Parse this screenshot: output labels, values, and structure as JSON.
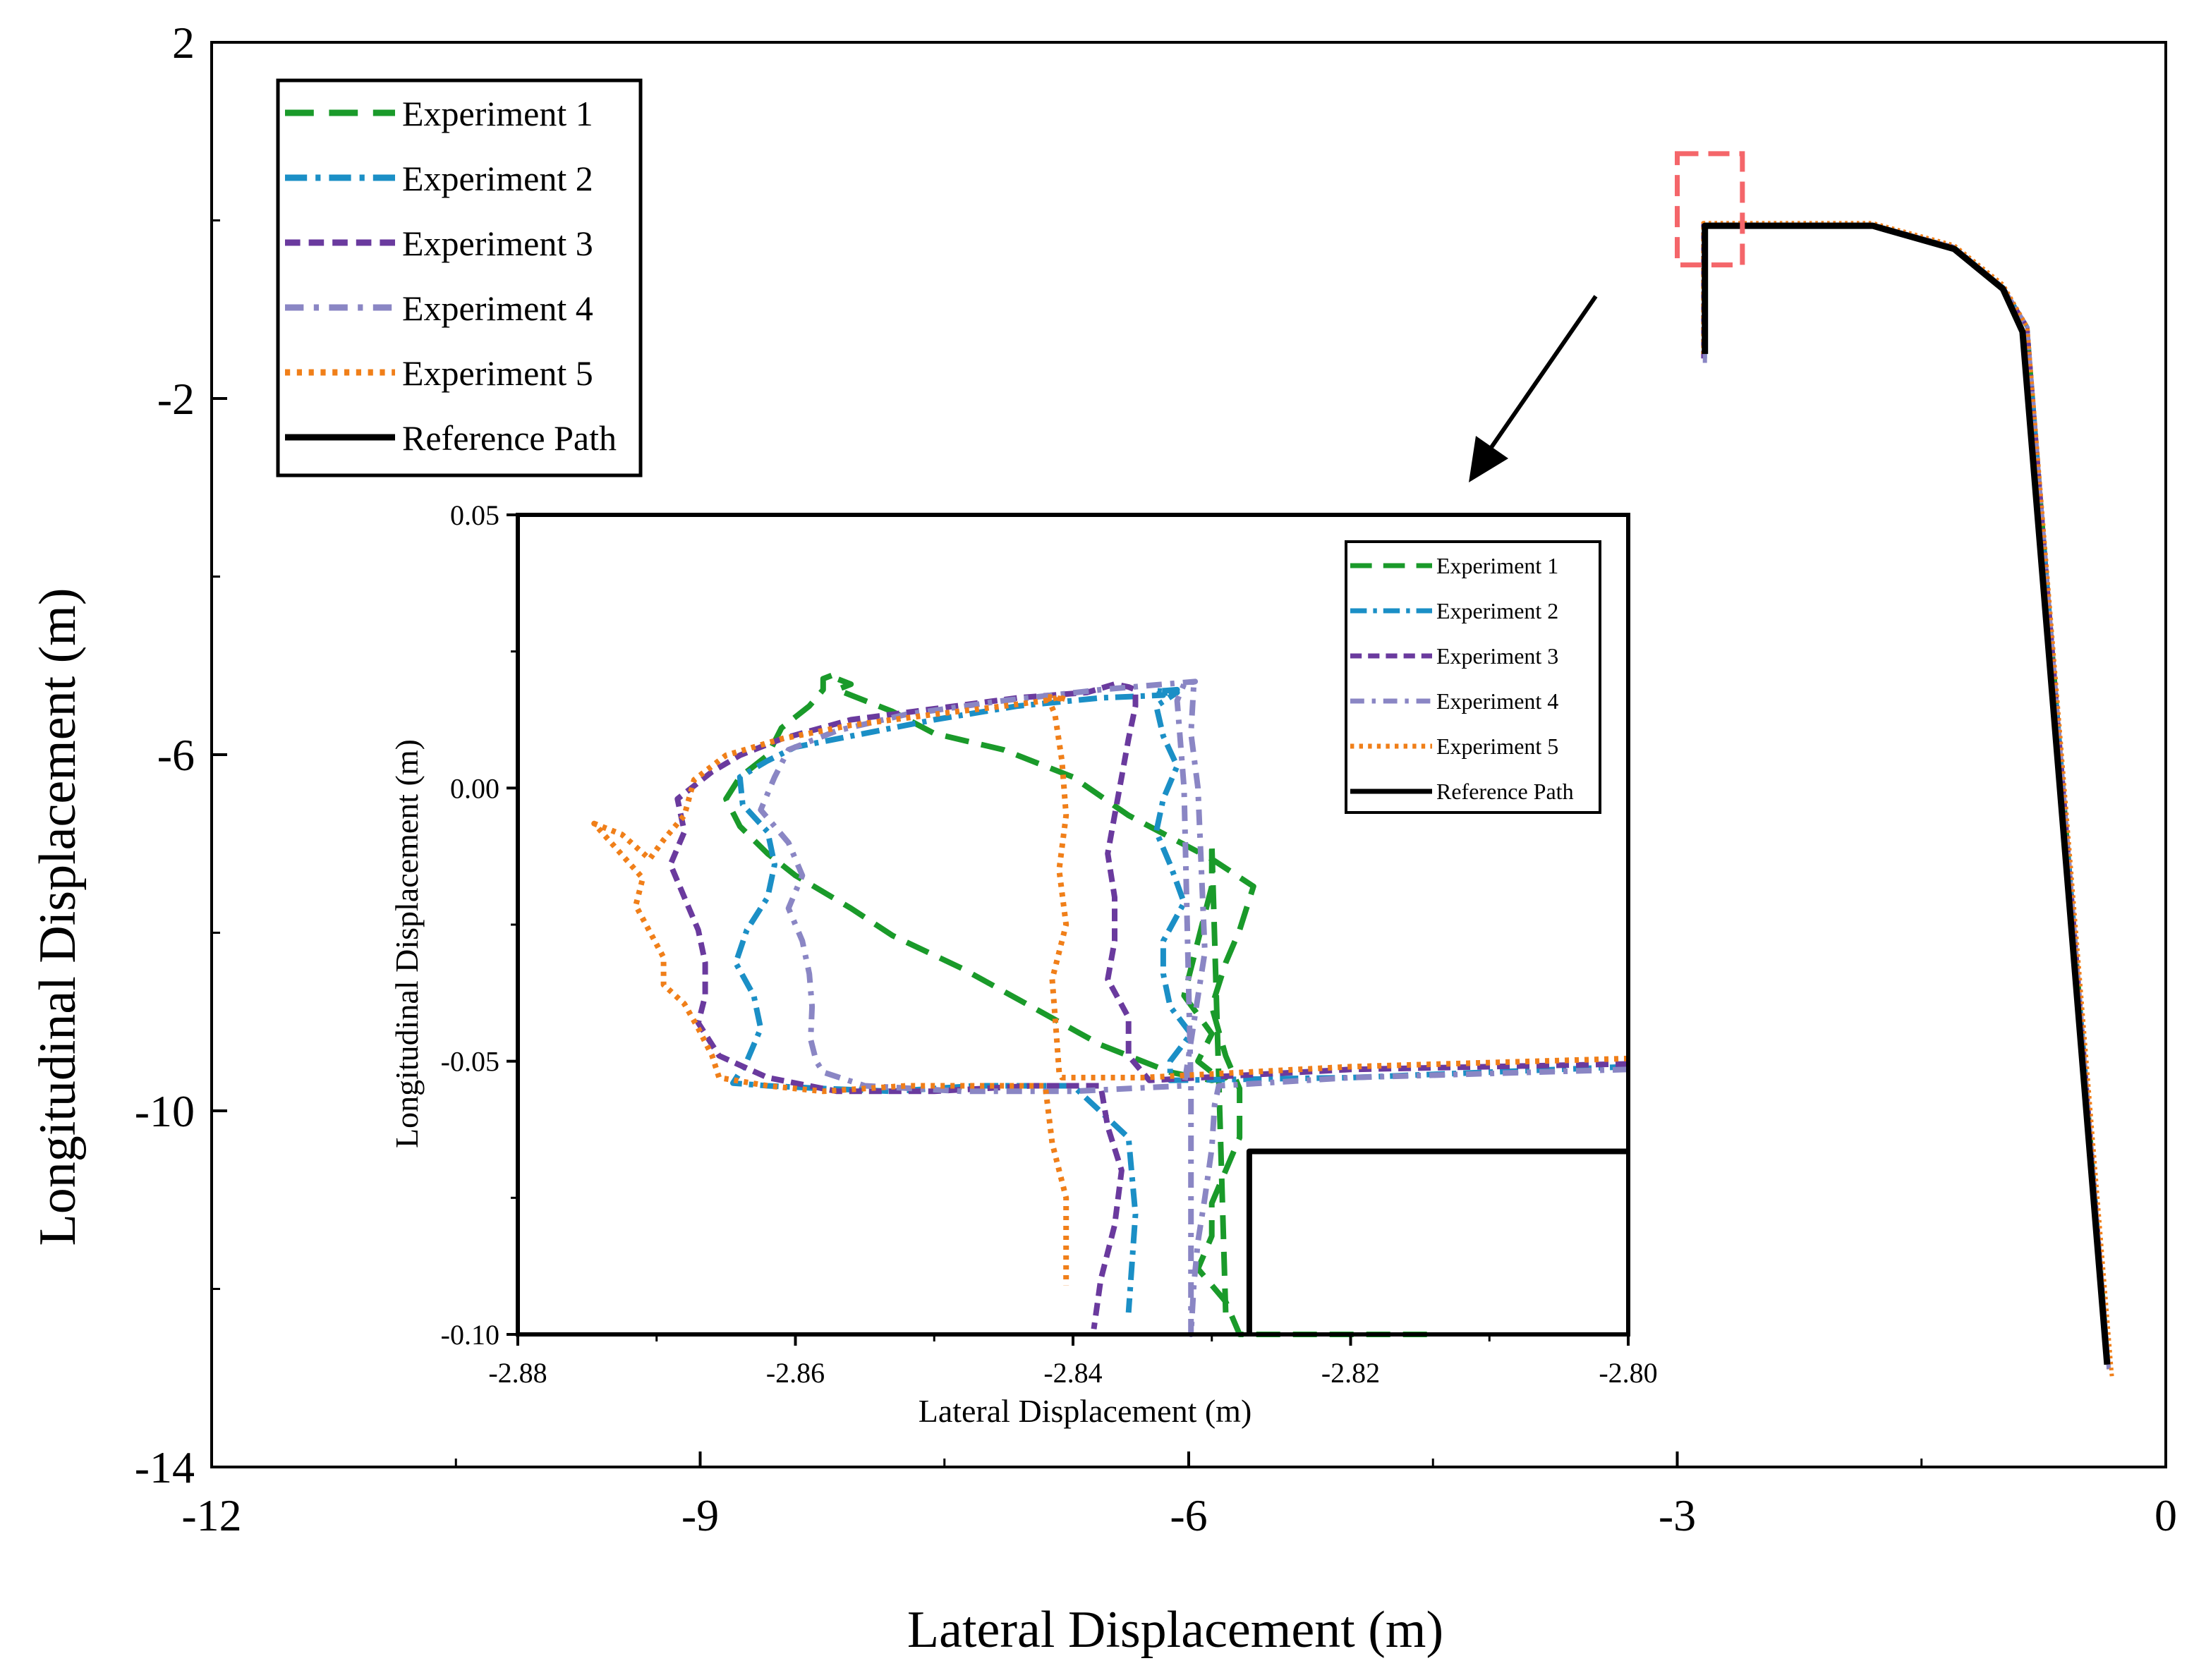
{
  "chart_data": [
    {
      "type": "line",
      "role": "main",
      "xlabel": "Lateral Displacement (m)",
      "ylabel": "Longitudinal Displacement (m)",
      "xlim": [
        -12,
        0
      ],
      "ylim": [
        -14,
        2
      ],
      "xticks": [
        -12,
        -9,
        -6,
        -3,
        0
      ],
      "xtick_labels": [
        "-12",
        "-9",
        "-6",
        "-3",
        "0"
      ],
      "yticks": [
        2,
        -2,
        -6,
        -10,
        -14
      ],
      "ytick_labels": [
        "2",
        "-2",
        "-6",
        "-10",
        "-14"
      ],
      "legend_position": "top-left",
      "series": [
        {
          "name": "Experiment 1",
          "color": "#1a9a2a",
          "style": "dash-long",
          "x": [
            -2.83,
            -2.83,
            -1.8,
            -1.3,
            -1.0,
            -0.85,
            -0.35
          ],
          "y": [
            -1.5,
            -0.05,
            -0.05,
            -0.3,
            -0.75,
            -1.2,
            -12.9
          ]
        },
        {
          "name": "Experiment 2",
          "color": "#1b8fc6",
          "style": "dash-dot",
          "x": [
            -2.83,
            -2.83,
            -1.8,
            -1.3,
            -1.0,
            -0.85,
            -0.35
          ],
          "y": [
            -1.55,
            -0.05,
            -0.05,
            -0.3,
            -0.75,
            -1.2,
            -12.9
          ]
        },
        {
          "name": "Experiment 3",
          "color": "#6a3a9e",
          "style": "dash-short",
          "x": [
            -2.84,
            -2.84,
            -1.8,
            -1.3,
            -1.0,
            -0.85,
            -0.35
          ],
          "y": [
            -1.55,
            -0.05,
            -0.05,
            -0.3,
            -0.75,
            -1.2,
            -12.9
          ]
        },
        {
          "name": "Experiment 4",
          "color": "#8a86c4",
          "style": "dash-dot-light",
          "x": [
            -2.83,
            -2.83,
            -1.8,
            -1.3,
            -1.0,
            -0.85,
            -0.35
          ],
          "y": [
            -1.6,
            -0.05,
            -0.05,
            -0.3,
            -0.75,
            -1.2,
            -12.9
          ]
        },
        {
          "name": "Experiment 5",
          "color": "#f07f19",
          "style": "dot",
          "x": [
            -2.84,
            -2.84,
            -1.8,
            -1.3,
            -1.0,
            -0.85,
            -0.33
          ],
          "y": [
            -1.5,
            -0.03,
            -0.03,
            -0.28,
            -0.72,
            -1.2,
            -13.0
          ]
        },
        {
          "name": "Reference Path",
          "color": "#000000",
          "style": "solid",
          "x": [
            -2.83,
            -2.83,
            -1.8,
            -1.3,
            -1.0,
            -0.88,
            -0.36
          ],
          "y": [
            -1.5,
            -0.06,
            -0.06,
            -0.32,
            -0.77,
            -1.25,
            -12.85
          ]
        }
      ],
      "highlight_box": {
        "x": [
          -3.0,
          -2.6
        ],
        "y": [
          -0.5,
          0.75
        ]
      }
    },
    {
      "type": "line",
      "role": "inset",
      "xlabel": "Lateral Displacement (m)",
      "ylabel": "Longitudinal Displacement (m)",
      "xlim": [
        -2.88,
        -2.8
      ],
      "ylim": [
        -0.1,
        0.05
      ],
      "xticks": [
        -2.88,
        -2.86,
        -2.84,
        -2.82,
        -2.8
      ],
      "xtick_labels": [
        "-2.88",
        "-2.86",
        "-2.84",
        "-2.82",
        "-2.80"
      ],
      "yticks": [
        0.05,
        0.0,
        -0.05,
        -0.1
      ],
      "ytick_labels": [
        "0.05",
        "0.00",
        "-0.05",
        "-0.10"
      ],
      "legend_position": "top-right",
      "series": [
        {
          "name": "Experiment 1",
          "color": "#1a9a2a",
          "style": "dash-long",
          "x": [
            -2.8145,
            -2.828,
            -2.829,
            -2.831,
            -2.83,
            -2.83,
            -2.829,
            -2.828,
            -2.828,
            -2.829,
            -2.83,
            -2.829,
            -2.828,
            -2.827,
            -2.83,
            -2.833,
            -2.836,
            -2.84,
            -2.845,
            -2.85,
            -2.853,
            -2.855,
            -2.857,
            -2.856,
            -2.857,
            -2.857,
            -2.858,
            -2.858,
            -2.859,
            -2.861,
            -2.862,
            -2.864,
            -2.865,
            -2.864,
            -2.862,
            -2.86,
            -2.856,
            -2.853,
            -2.848,
            -2.843,
            -2.838,
            -2.833,
            -2.83,
            -2.829,
            -2.83,
            -2.831,
            -2.83,
            -2.832,
            -2.831,
            -2.83,
            -2.83,
            -2.829
          ],
          "y": [
            -0.1,
            -0.1,
            -0.094,
            -0.088,
            -0.082,
            -0.076,
            -0.07,
            -0.064,
            -0.055,
            -0.049,
            -0.04,
            -0.032,
            -0.026,
            -0.018,
            -0.013,
            -0.009,
            -0.005,
            0.002,
            0.007,
            0.01,
            0.014,
            0.016,
            0.018,
            0.019,
            0.02,
            0.021,
            0.02,
            0.018,
            0.015,
            0.011,
            0.006,
            0.002,
            -0.002,
            -0.007,
            -0.012,
            -0.016,
            -0.022,
            -0.027,
            -0.033,
            -0.04,
            -0.047,
            -0.052,
            -0.0535,
            -0.053,
            -0.052,
            -0.05,
            -0.045,
            -0.038,
            -0.028,
            -0.018,
            -0.01,
            -0.096
          ]
        },
        {
          "name": "Experiment 2",
          "color": "#1b8fc6",
          "style": "dash-dot",
          "x": [
            -2.8,
            -2.82,
            -2.833,
            -2.833,
            -2.8315,
            -2.833,
            -2.8335,
            -2.8335,
            -2.832,
            -2.833,
            -2.834,
            -2.8335,
            -2.8325,
            -2.8335,
            -2.834,
            -2.8325,
            -2.834,
            -2.8335,
            -2.8325,
            -2.833,
            -2.834,
            -2.8335,
            -2.838,
            -2.844,
            -2.85,
            -2.856,
            -2.86,
            -2.862,
            -2.864,
            -2.8638,
            -2.862,
            -2.8615,
            -2.862,
            -2.8635,
            -2.8643,
            -2.863,
            -2.8625,
            -2.8635,
            -2.8645,
            -2.862,
            -2.858,
            -2.853,
            -2.847,
            -2.84,
            -2.836,
            -2.8355,
            -2.836
          ],
          "y": [
            -0.051,
            -0.053,
            -0.0535,
            -0.05,
            -0.045,
            -0.04,
            -0.034,
            -0.028,
            -0.021,
            -0.014,
            -0.008,
            -0.002,
            0.004,
            0.0095,
            0.015,
            0.0175,
            0.0178,
            0.0178,
            0.018,
            0.0175,
            0.0172,
            0.017,
            0.0165,
            0.015,
            0.0125,
            0.0095,
            0.0075,
            0.005,
            0.002,
            -0.003,
            -0.008,
            -0.014,
            -0.02,
            -0.026,
            -0.032,
            -0.038,
            -0.044,
            -0.05,
            -0.054,
            -0.0545,
            -0.055,
            -0.0555,
            -0.0545,
            -0.0545,
            -0.064,
            -0.078,
            -0.096
          ]
        },
        {
          "name": "Experiment 3",
          "color": "#6a3a9e",
          "style": "dash-short",
          "x": [
            -2.8,
            -2.82,
            -2.8345,
            -2.836,
            -2.836,
            -2.8375,
            -2.837,
            -2.837,
            -2.8375,
            -2.837,
            -2.8365,
            -2.836,
            -2.8355,
            -2.8355,
            -2.836,
            -2.837,
            -2.839,
            -2.844,
            -2.85,
            -2.856,
            -2.861,
            -2.864,
            -2.866,
            -2.8685,
            -2.868,
            -2.869,
            -2.868,
            -2.867,
            -2.8665,
            -2.8665,
            -2.867,
            -2.8655,
            -2.862,
            -2.857,
            -2.85,
            -2.843,
            -2.838,
            -2.8375,
            -2.8365,
            -2.837,
            -2.838,
            -2.8385
          ],
          "y": [
            -0.0505,
            -0.0515,
            -0.0535,
            -0.049,
            -0.042,
            -0.035,
            -0.028,
            -0.02,
            -0.012,
            -0.005,
            0.002,
            0.009,
            0.015,
            0.018,
            0.0185,
            0.019,
            0.0175,
            0.0165,
            0.0145,
            0.0125,
            0.009,
            0.006,
            0.003,
            -0.002,
            -0.008,
            -0.014,
            -0.02,
            -0.026,
            -0.032,
            -0.038,
            -0.043,
            -0.049,
            -0.053,
            -0.0555,
            -0.0555,
            -0.0545,
            -0.0545,
            -0.062,
            -0.07,
            -0.08,
            -0.09,
            -0.099
          ]
        },
        {
          "name": "Experiment 4",
          "color": "#8a86c4",
          "style": "dash-dot-light",
          "x": [
            -2.8,
            -2.82,
            -2.8295,
            -2.8298,
            -2.83,
            -2.8305,
            -2.831,
            -2.8313,
            -2.8315,
            -2.8315,
            -2.8315,
            -2.832,
            -2.8325,
            -2.832,
            -2.8312,
            -2.838,
            -2.845,
            -2.852,
            -2.857,
            -2.8605,
            -2.8615,
            -2.8625,
            -2.8605,
            -2.8595,
            -2.8605,
            -2.8595,
            -2.859,
            -2.8588,
            -2.8589,
            -2.8585,
            -2.858,
            -2.855,
            -2.848,
            -2.84,
            -2.832,
            -2.8305,
            -2.831,
            -2.8315,
            -2.8313
          ],
          "y": [
            -0.0515,
            -0.053,
            -0.0545,
            -0.058,
            -0.066,
            -0.075,
            -0.083,
            -0.091,
            -0.1,
            -0.094,
            -0.055,
            0.0,
            0.016,
            0.019,
            0.0195,
            0.018,
            0.016,
            0.0135,
            0.0105,
            0.007,
            0.002,
            -0.004,
            -0.01,
            -0.016,
            -0.022,
            -0.028,
            -0.034,
            -0.04,
            -0.046,
            -0.05,
            -0.052,
            -0.0545,
            -0.0555,
            -0.0555,
            -0.0545,
            -0.03,
            0.0,
            0.01,
            0.019
          ]
        },
        {
          "name": "Experiment 5",
          "color": "#f07f19",
          "style": "dot",
          "x": [
            -2.8,
            -2.82,
            -2.835,
            -2.8408,
            -2.841,
            -2.8412,
            -2.8415,
            -2.8405,
            -2.841,
            -2.8405,
            -2.8408,
            -2.8413,
            -2.8418,
            -2.842,
            -2.8405,
            -2.8412,
            -2.8412,
            -2.842,
            -2.845,
            -2.85,
            -2.856,
            -2.861,
            -2.865,
            -2.8673,
            -2.868,
            -2.8695,
            -2.8705,
            -2.8725,
            -2.8745,
            -2.871,
            -2.8715,
            -2.8695,
            -2.8695,
            -2.868,
            -2.867,
            -2.866,
            -2.8655,
            -2.862,
            -2.858,
            -2.852,
            -2.846,
            -2.842,
            -2.8415,
            -2.8405,
            -2.8405
          ],
          "y": [
            -0.0495,
            -0.051,
            -0.053,
            -0.053,
            -0.052,
            -0.045,
            -0.035,
            -0.025,
            -0.015,
            -0.005,
            0.005,
            0.0135,
            0.0165,
            0.0168,
            0.0162,
            0.0168,
            0.0165,
            0.016,
            0.015,
            0.0135,
            0.0115,
            0.009,
            0.006,
            0.0015,
            -0.005,
            -0.0095,
            -0.013,
            -0.0085,
            -0.0065,
            -0.0165,
            -0.0215,
            -0.031,
            -0.036,
            -0.0395,
            -0.044,
            -0.049,
            -0.053,
            -0.0545,
            -0.0555,
            -0.0545,
            -0.0545,
            -0.0545,
            -0.065,
            -0.075,
            -0.091
          ]
        },
        {
          "name": "Reference Path",
          "color": "#000000",
          "style": "solid",
          "x": [
            -2.8,
            -2.8273,
            -2.8273
          ],
          "y": [
            -0.0665,
            -0.0665,
            -0.1
          ]
        }
      ]
    }
  ]
}
